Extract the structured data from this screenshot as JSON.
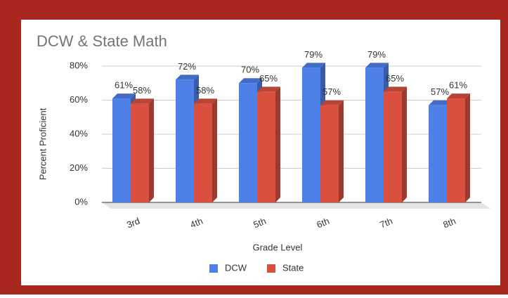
{
  "chart_data": {
    "type": "bar3d",
    "title": "DCW & State Math",
    "x_label": "Grade Level",
    "y_label": "Percent Proficient",
    "categories": [
      "3rd",
      "4th",
      "5th",
      "6th",
      "7th",
      "8th"
    ],
    "series": [
      {
        "name": "DCW",
        "color": "#4f80e8",
        "values": [
          61,
          72,
          70,
          79,
          79,
          57
        ],
        "value_labels": [
          "61%",
          "72%",
          "70%",
          "79%",
          "79%",
          "57%"
        ]
      },
      {
        "name": "State",
        "color": "#d9503e",
        "values": [
          58,
          58,
          65,
          57,
          65,
          61
        ],
        "value_labels": [
          "58%",
          "58%",
          "65%",
          "57%",
          "65%",
          "61%"
        ]
      }
    ],
    "ylim": [
      0,
      80
    ],
    "yticks": [
      {
        "value": 0,
        "label": "0%"
      },
      {
        "value": 20,
        "label": "20%"
      },
      {
        "value": 40,
        "label": "40%"
      },
      {
        "value": 60,
        "label": "60%"
      },
      {
        "value": 80,
        "label": "80%"
      }
    ],
    "grid": true,
    "legend": "bottom"
  }
}
